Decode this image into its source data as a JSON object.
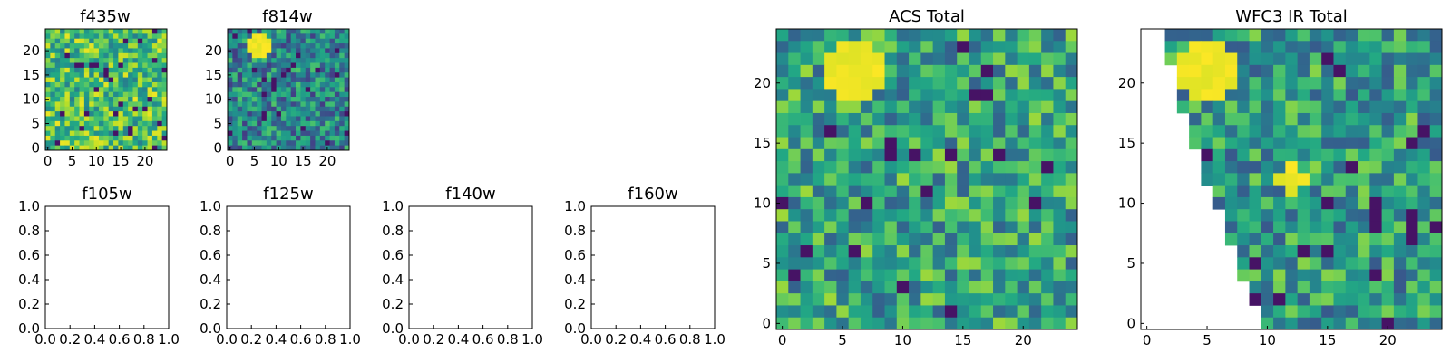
{
  "chart_data": [
    {
      "type": "heatmap",
      "title": "f435w",
      "grid_size": 25,
      "xlim": [
        -0.5,
        24.5
      ],
      "ylim": [
        -0.5,
        24.5
      ],
      "xticks": [
        0,
        5,
        10,
        15,
        20
      ],
      "yticks": [
        0,
        5,
        10,
        15,
        20
      ],
      "colormap": "viridis",
      "pattern": "noise",
      "mean_level": 0.7,
      "seed": 11
    },
    {
      "type": "heatmap",
      "title": "f814w",
      "grid_size": 25,
      "xlim": [
        -0.5,
        24.5
      ],
      "ylim": [
        -0.5,
        24.5
      ],
      "xticks": [
        0,
        5,
        10,
        15,
        20
      ],
      "yticks": [
        0,
        5,
        10,
        15,
        20
      ],
      "colormap": "viridis",
      "pattern": "noise",
      "mean_level": 0.45,
      "hotspots": [
        {
          "x": 6,
          "y": 21,
          "radius": 2
        }
      ],
      "seed": 23
    },
    {
      "type": "empty",
      "title": "f105w",
      "xlim": [
        0,
        1
      ],
      "ylim": [
        0,
        1
      ],
      "xticks": [
        "0.0",
        "0.2",
        "0.4",
        "0.6",
        "0.8",
        "1.0"
      ],
      "yticks": [
        "0.0",
        "0.2",
        "0.4",
        "0.6",
        "0.8",
        "1.0"
      ]
    },
    {
      "type": "empty",
      "title": "f125w",
      "xlim": [
        0,
        1
      ],
      "ylim": [
        0,
        1
      ],
      "xticks": [
        "0.0",
        "0.2",
        "0.4",
        "0.6",
        "0.8",
        "1.0"
      ],
      "yticks": [
        "0.0",
        "0.2",
        "0.4",
        "0.6",
        "0.8",
        "1.0"
      ]
    },
    {
      "type": "empty",
      "title": "f140w",
      "xlim": [
        0,
        1
      ],
      "ylim": [
        0,
        1
      ],
      "xticks": [
        "0.0",
        "0.2",
        "0.4",
        "0.6",
        "0.8",
        "1.0"
      ],
      "yticks": [
        "0.0",
        "0.2",
        "0.4",
        "0.6",
        "0.8",
        "1.0"
      ]
    },
    {
      "type": "empty",
      "title": "f160w",
      "xlim": [
        0,
        1
      ],
      "ylim": [
        0,
        1
      ],
      "xticks": [
        "0.0",
        "0.2",
        "0.4",
        "0.6",
        "0.8",
        "1.0"
      ],
      "yticks": [
        "0.0",
        "0.2",
        "0.4",
        "0.6",
        "0.8",
        "1.0"
      ]
    },
    {
      "type": "heatmap",
      "title": "ACS Total",
      "grid_size": 25,
      "xlim": [
        -0.5,
        24.5
      ],
      "ylim": [
        -0.5,
        24.5
      ],
      "xticks": [
        0,
        5,
        10,
        15,
        20
      ],
      "yticks": [
        0,
        5,
        10,
        15,
        20
      ],
      "colormap": "viridis",
      "pattern": "noise",
      "mean_level": 0.58,
      "hotspots": [
        {
          "x": 6,
          "y": 21,
          "radius": 2
        }
      ],
      "seed": 37
    },
    {
      "type": "heatmap",
      "title": "WFC3 IR Total",
      "grid_size": 25,
      "xlim": [
        -0.5,
        24.5
      ],
      "ylim": [
        -0.5,
        24.5
      ],
      "xticks": [
        0,
        5,
        10,
        15,
        20
      ],
      "yticks": [
        0,
        5,
        10,
        15,
        20
      ],
      "colormap": "viridis",
      "pattern": "noise",
      "mean_level": 0.55,
      "hotspots": [
        {
          "x": 5,
          "y": 21,
          "radius": 2
        },
        {
          "x": 12,
          "y": 12,
          "radius": 1
        }
      ],
      "masked_region": "left wedge (no coverage)",
      "seed": 53
    }
  ]
}
